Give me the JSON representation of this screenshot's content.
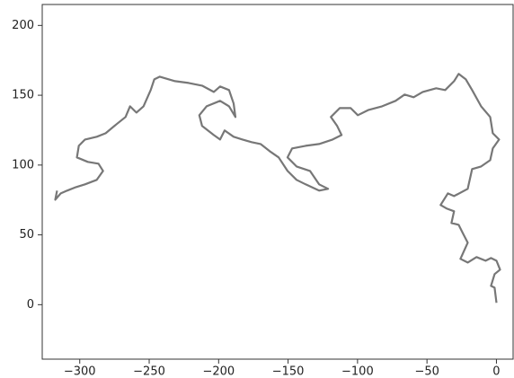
{
  "chart_data": {
    "type": "line",
    "x": [
      0,
      -1.3,
      -3.9,
      -1.3,
      2.6,
      0,
      -3.9,
      -7.8,
      -14.3,
      -20.7,
      -25.9,
      -20.7,
      -24.0,
      -27.2,
      -32.4,
      -30.5,
      -35.6,
      -40.2,
      -35.0,
      -30.5,
      -20.7,
      -17.5,
      -11.0,
      -4.5,
      -2.6,
      1.9,
      -2.6,
      -4.5,
      -11.0,
      -17.5,
      -22.0,
      -27.2,
      -30.5,
      -36.9,
      -43.4,
      -53.1,
      -59.6,
      -66.1,
      -72.6,
      -82.3,
      -92.0,
      -99.8,
      -105.0,
      -112.8,
      -119.2,
      -114.7,
      -111.5,
      -118.0,
      -127.7,
      -137.4,
      -147.1,
      -150.4,
      -143.9,
      -134.2,
      -127.7,
      -121.2,
      -127.7,
      -137.4,
      -143.9,
      -150.4,
      -156.8,
      -163.3,
      -169.8,
      -176.3,
      -182.8,
      -189.2,
      -195.7,
      -199.0,
      -203.5,
      -211.9,
      -213.9,
      -208.7,
      -199.0,
      -192.5,
      -187.9,
      -189.2,
      -192.5,
      -199.0,
      -203.5,
      -211.9,
      -221.6,
      -231.4,
      -242.4,
      -246.3,
      -248.9,
      -254.1,
      -259.2,
      -263.8,
      -267.0,
      -273.5,
      -281.3,
      -287.7,
      -296.2,
      -300.7,
      -302.0,
      -294.2,
      -286.5,
      -283.2,
      -287.7,
      -296.2,
      -302.7,
      -309.1,
      -313.7,
      -317.6,
      -316.3
    ],
    "series": [
      {
        "color": "#777777",
        "values": [
          1.3,
          12.2,
          13.5,
          21.9,
          25.1,
          31.5,
          33.4,
          31.5,
          34.1,
          30.2,
          32.8,
          44.4,
          50.8,
          57.2,
          58.5,
          66.9,
          68.8,
          71.4,
          79.7,
          77.8,
          83.0,
          97.1,
          99.0,
          103.5,
          111.9,
          118.3,
          122.8,
          134.4,
          142.1,
          153.7,
          161.4,
          165.3,
          160.1,
          153.7,
          155.0,
          152.4,
          148.6,
          150.5,
          146.0,
          142.1,
          139.5,
          135.7,
          140.8,
          140.8,
          134.4,
          128.0,
          121.5,
          118.3,
          115.1,
          113.8,
          111.9,
          105.5,
          99.0,
          95.8,
          86.2,
          83.0,
          81.7,
          86.2,
          89.4,
          95.8,
          105.5,
          110.0,
          115.1,
          116.4,
          118.3,
          120.3,
          124.8,
          118.3,
          121.5,
          128.0,
          135.7,
          142.1,
          146.0,
          142.1,
          134.4,
          144.1,
          153.7,
          156.3,
          152.4,
          156.9,
          158.8,
          160.1,
          163.3,
          161.4,
          153.7,
          142.1,
          137.6,
          142.1,
          134.4,
          129.3,
          122.8,
          120.3,
          118.3,
          113.8,
          105.5,
          102.3,
          101.0,
          95.8,
          89.4,
          86.2,
          84.2,
          81.7,
          79.7,
          75.2,
          81.7
        ]
      }
    ],
    "xlim": [
      -327,
      12
    ],
    "ylim": [
      -39,
      215
    ],
    "xticks": [
      {
        "value": -300,
        "label": "−300"
      },
      {
        "value": -250,
        "label": "−250"
      },
      {
        "value": -200,
        "label": "−200"
      },
      {
        "value": -150,
        "label": "−150"
      },
      {
        "value": -100,
        "label": "−100"
      },
      {
        "value": -50,
        "label": "−50"
      },
      0
    ],
    "yticks": [
      0,
      50,
      100,
      150,
      200
    ]
  }
}
